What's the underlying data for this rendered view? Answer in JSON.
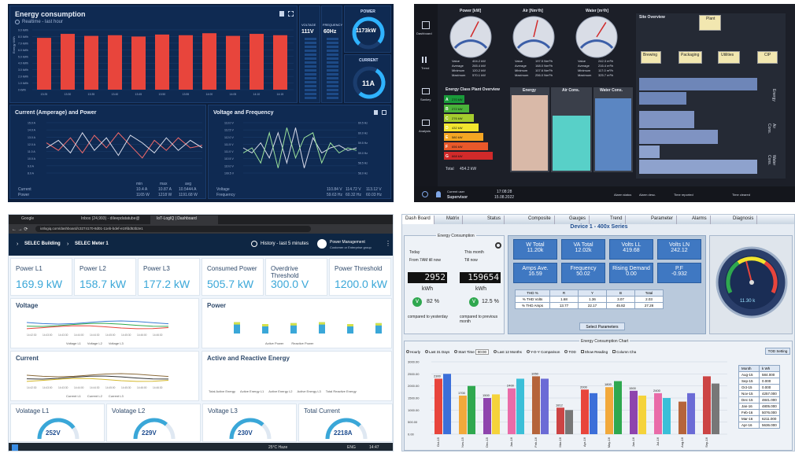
{
  "p1": {
    "energy_title": "Energy consumption",
    "energy_subtitle": "Realtime - last hour",
    "energy_ylabel": "Energy kWh",
    "energy_yticks": [
      "9.0 kWh",
      "8.0 kWh",
      "7.0 kWh",
      "6.0 kWh",
      "5.0 kWh",
      "4.0 kWh",
      "3.0 kWh",
      "2.0 kWh",
      "1.0 kWh",
      "0 kWh"
    ],
    "energy_xticks": [
      "13:25",
      "13:30",
      "13:35",
      "13:40",
      "13:45",
      "13:50",
      "13:55",
      "14:00",
      "14:05",
      "14:10",
      "14:15"
    ],
    "energy_legend": [
      "Current",
      "Power"
    ],
    "voltage_label": "VOLTAGE",
    "voltage_value": "111V",
    "frequency_label": "FREQUENCY",
    "frequency_value": "60Hz",
    "power_label": "POWER",
    "power_value": "1173kW",
    "current_label": "CURRENT",
    "current_value": "11A",
    "cp_title": "Current (Amperage) and Power",
    "vf_title": "Voltage and Frequency",
    "cp_ylabel": "Amperage, A",
    "cp_yticks": [
      "15.0 A",
      "14.0 A",
      "13.0 A",
      "12.0 A",
      "11.0 A",
      "10.0 A",
      "9.0 A",
      "8.0 A"
    ],
    "vf_yticks": [
      "113.0 V",
      "112.5 V",
      "112.0 V",
      "111.5 V",
      "111.0 V",
      "110.5 V",
      "110.0 V",
      "109.5 V"
    ],
    "vf_yticks_right": [
      "60.5 Hz",
      "60.0 Hz",
      "59.5 Hz",
      "59.0 Hz",
      "58.5 Hz",
      "58.0 Hz"
    ],
    "cp_legend_head": [
      "min",
      "max",
      "avg"
    ],
    "cp_legend": [
      {
        "name": "Current",
        "min": "10.4 A",
        "max": "10.87 A",
        "avg": "10.5444 A"
      },
      {
        "name": "Power",
        "min": "1165 W",
        "max": "1218 W",
        "avg": "1191.68 W"
      }
    ],
    "vf_legend": [
      {
        "name": "Voltage",
        "min": "110.84 V",
        "max": "114.72 V",
        "avg": "113.12 V"
      },
      {
        "name": "Frequency",
        "min": "59.63 Hz",
        "max": "60.32 Hz",
        "avg": "60.03 Hz"
      }
    ],
    "colors": {
      "bar": "#e8453c",
      "line_a": "#f26a6a",
      "line_b": "#d9dcea",
      "line_c": "#9be29b",
      "accent": "#2fb3ff"
    }
  },
  "p2": {
    "nav": [
      "Dashboard",
      "Trend",
      "Sankey",
      "Analysis"
    ],
    "gauges": [
      {
        "title": "Power [kW]",
        "rows": [
          [
            "Value",
            "404.2 kW"
          ],
          [
            "Average",
            "265.4 kW"
          ],
          [
            "Minimum",
            "120.2 kW"
          ],
          [
            "Maximum",
            "570.1 kW"
          ]
        ],
        "level": 0.6
      },
      {
        "title": "Air [Nm³/h]",
        "rows": [
          [
            "Value",
            "197.5 Nm³/h"
          ],
          [
            "Average",
            "168.0 Nm³/h"
          ],
          [
            "Minimum",
            "107.6 Nm³/h"
          ],
          [
            "Maximum",
            "256.0 Nm³/h"
          ]
        ],
        "level": 0.55
      },
      {
        "title": "Water [m³/h]",
        "rows": [
          [
            "Value",
            "242.3 m³/h"
          ],
          [
            "Average",
            "216.4 m³/h"
          ],
          [
            "Minimum",
            "117.0 m³/h"
          ],
          [
            "Maximum",
            "325.7 m³/h"
          ]
        ],
        "level": 0.62
      }
    ],
    "energy_class_title": "Energy Class Plant Overview",
    "classes": [
      "A",
      "B",
      "C",
      "D",
      "E",
      "F",
      "G"
    ],
    "class_values": [
      "270 kW",
      "272 kW",
      "276 kW",
      "432 kW",
      "580 kW",
      "656 kW",
      "668 kW"
    ],
    "class_colors": [
      "#1a9a3a",
      "#4bb33a",
      "#a5cc2e",
      "#f2e52e",
      "#f5a623",
      "#e8582a",
      "#d12a2a"
    ],
    "total_label": "Total",
    "total_value": "454.2 kW",
    "col_titles": [
      "Energy",
      "Air Cons.",
      "Water Cons."
    ],
    "site_overview": "Site Overview",
    "plant": "Plant",
    "sub_nodes": [
      "Brewing",
      "Packaging",
      "Utilities",
      "CIP"
    ],
    "side_labels": [
      "Energy",
      "Air Cons.",
      "Water Cons."
    ],
    "user_label": "Current user",
    "user_value": "Supervisor",
    "time_value": "17:08:28",
    "date_value": "15.08.2022",
    "status": [
      "Alarm status",
      "Alarm desc.",
      "Time reported",
      "Time cleared"
    ]
  },
  "p3": {
    "tabs": [
      "Google",
      "Inbox (24,993) - dileepdatatube@",
      "IoT-LogIQ | Dashboard"
    ],
    "url": "iotlogiq.com/dashboard/c3274170-8d01-11eb-bdef-e19fdd53b2e1",
    "breadcrumb_1": "SELEC Building",
    "breadcrumb_2": "SELEC Meter 1",
    "history": "History - last 5 minutes",
    "user_title": "Power Management",
    "user_sub": "Customer or Enterprise group",
    "cards": [
      {
        "label": "Power L1",
        "value": "169.9 kW"
      },
      {
        "label": "Power L2",
        "value": "158.7 kW"
      },
      {
        "label": "Power L3",
        "value": "177.2 kW"
      },
      {
        "label": "Consumed Power",
        "value": "505.7 kW"
      },
      {
        "label": "Overdrive Threshold",
        "value": "300.0 V"
      },
      {
        "label": "Power Threshold",
        "value": "1200.0 kW"
      }
    ],
    "voltage_title": "Voltage",
    "power_title": "Power",
    "current_title": "Current",
    "are_title": "Active and Reactive Energy",
    "voltage_legend": [
      "Voltage L1",
      "Voltage L2",
      "Voltage L3"
    ],
    "power_legend": [
      "Active Power",
      "Reactive Power"
    ],
    "current_legend": [
      "Current L1",
      "Current L2",
      "Current L3"
    ],
    "energy_legend": [
      "Total Active Energy",
      "Active Energy L1",
      "Active Energy L2",
      "Active Energy L3",
      "Total Reactive Energy"
    ],
    "x_ticks": [
      "14:42:30",
      "14:43:00",
      "14:43:30",
      "14:44:00",
      "14:44:30",
      "14:45:00",
      "14:45:30",
      "14:46:00",
      "14:46:30",
      "14:47:00"
    ],
    "gauges": [
      {
        "label": "Volatage L1",
        "value": "252V",
        "level": 0.8
      },
      {
        "label": "Volatage L2",
        "value": "229V",
        "level": 0.72
      },
      {
        "label": "Voltage L3",
        "value": "230V",
        "level": 0.73
      },
      {
        "label": "Total Current",
        "value": "2218A",
        "level": 0.75
      }
    ],
    "taskbar_weather": "25°C Haze",
    "taskbar_lang": "ENG",
    "taskbar_time": "14:47"
  },
  "p4": {
    "tabs": [
      "Dash Board",
      "Matrix",
      "Status",
      "Composite",
      "Gauges",
      "Trend",
      "Parameter",
      "Alarms",
      "Diagnosis"
    ],
    "device_title": "Device 1  -  400x Series",
    "consumption_box": "Energy Consumption",
    "today": "Today",
    "from_label": "From 7AM till now",
    "this_month": "This month",
    "till_now": "Till now",
    "today_value": "2952",
    "month_value": "159654",
    "unit": "kWh",
    "pct_today": "82 %",
    "pct_month": "12.5 %",
    "cmp_yesterday": "compared to yesterday",
    "cmp_month": "compared to previous month",
    "metrics": [
      {
        "label": "W Total",
        "value": "11.20k"
      },
      {
        "label": "VA Total",
        "value": "12.02k"
      },
      {
        "label": "Volts LL",
        "value": "419.68"
      },
      {
        "label": "Volts LN",
        "value": "242.12"
      },
      {
        "label": "Amps Ave.",
        "value": "16.59"
      },
      {
        "label": "Frequency",
        "value": "50.02"
      },
      {
        "label": "Rising Demand",
        "value": "0.00"
      },
      {
        "label": "P.F",
        "value": "-0.932"
      }
    ],
    "thd_head": [
      "THD %",
      "R",
      "Y",
      "B",
      "Total"
    ],
    "thd_rows": [
      [
        "% THD Volts",
        "1.68",
        "1.36",
        "3.07",
        "2.03"
      ],
      [
        "% THD Amps",
        "13.77",
        "22.17",
        "45.82",
        "27.28"
      ]
    ],
    "select_params": "Select Parameters",
    "gauge_value": "11.30 k",
    "chart_box": "Energy Consumption Chart",
    "options": [
      "Hourly",
      "Last 31 Days",
      "Start Time",
      "Last 12 Months",
      "Y-O-Y Comparison",
      "TOD",
      "Show Reading",
      "Column Cha"
    ],
    "start_value": "00:00",
    "tod_setting": "TOD Setting",
    "table_head": [
      "Month",
      "k Wh"
    ],
    "table_rows": [
      [
        "Aug-15",
        "584.000"
      ],
      [
        "Sep-15",
        "0.000"
      ],
      [
        "Oct-15",
        "0.000"
      ],
      [
        "Nov-15",
        "4257.000"
      ],
      [
        "Dec-15",
        "4841.000"
      ],
      [
        "Jan-16",
        "4805.000"
      ],
      [
        "Feb-16",
        "5076.000"
      ],
      [
        "Mar-16",
        "6211.000"
      ],
      [
        "Apr-16",
        "5636.000"
      ]
    ]
  },
  "chart_data": [
    {
      "type": "bar",
      "title": "Energy consumption",
      "ylabel": "Energy kWh",
      "categories": [
        "13:25",
        "13:30",
        "13:35",
        "13:40",
        "13:45",
        "13:50",
        "13:55",
        "14:00",
        "14:05",
        "14:10",
        "14:15"
      ],
      "values": [
        7.8,
        8.4,
        8.1,
        8.2,
        8.0,
        8.3,
        8.2,
        8.5,
        8.1,
        8.4,
        8.2
      ],
      "ylim": [
        0,
        9
      ]
    },
    {
      "type": "bar",
      "categories": [
        "Oct-15",
        "Nov-15",
        "Dec-15",
        "Jan-16",
        "Feb-16",
        "Mar-16",
        "Apr-16",
        "May-16",
        "Jun-16",
        "Jul-16",
        "Aug-16",
        "Sep-16"
      ],
      "series": [
        {
          "values": [
            2300,
            1600,
            1500,
            1900,
            2400,
            1100,
            1850,
            1950,
            1800,
            1700,
            1350,
            2400
          ]
        },
        {
          "values": [
            2500,
            2000,
            1650,
            2300,
            2300,
            1000,
            1700,
            2200,
            1600,
            1500,
            1700,
            2100
          ]
        }
      ],
      "value_labels": [
        "2300",
        "1700",
        "1500",
        "2400",
        "1050",
        "1812",
        "2000",
        "1800",
        "1500",
        "2400"
      ],
      "ylim": [
        0,
        3000
      ],
      "yticks": [
        "3000.00",
        "2500.00",
        "2000.00",
        "1500.00",
        "1000.00",
        "500.00",
        "0.00"
      ],
      "colors": [
        "#e8453c",
        "#3c6fd9",
        "#f2a93b",
        "#2fa84f",
        "#8e44ad",
        "#f5d33b",
        "#e96ba8",
        "#3bbfd8",
        "#b5643b",
        "#6b6bd6",
        "#c44",
        "#777"
      ]
    }
  ]
}
